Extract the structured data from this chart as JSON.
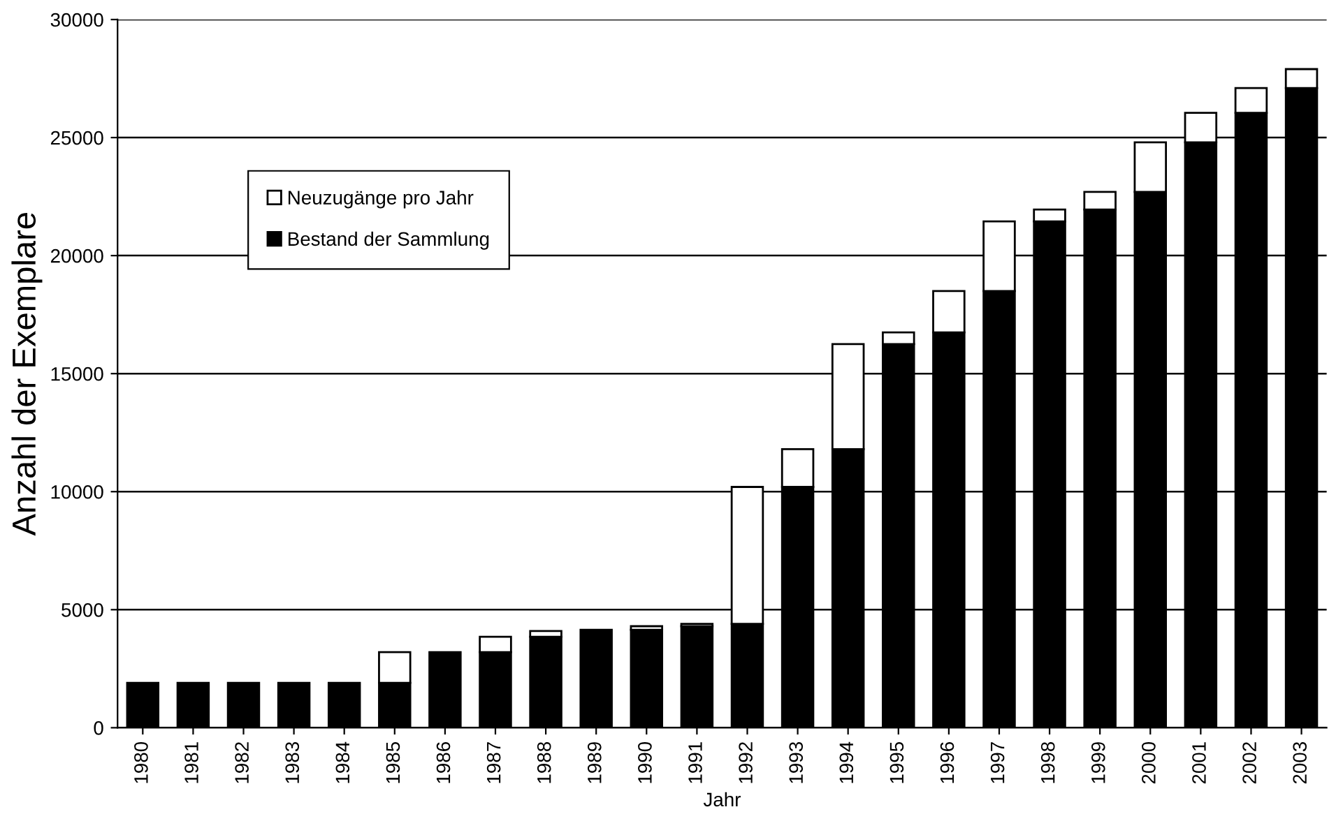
{
  "chart_data": {
    "type": "bar",
    "stacked": true,
    "xlabel": "Jahr",
    "ylabel": "Anzahl der Exemplare",
    "categories": [
      "1980",
      "1981",
      "1982",
      "1983",
      "1984",
      "1985",
      "1986",
      "1987",
      "1988",
      "1989",
      "1990",
      "1991",
      "1992",
      "1993",
      "1994",
      "1995",
      "1996",
      "1997",
      "1998",
      "1999",
      "2000",
      "2001",
      "2002",
      "2003"
    ],
    "series": [
      {
        "name": "Bestand der Sammlung",
        "color": "#000000",
        "values": [
          1900,
          1900,
          1900,
          1900,
          1900,
          1900,
          3200,
          3200,
          3850,
          4150,
          4150,
          4300,
          4400,
          10200,
          11800,
          16250,
          16750,
          18500,
          21450,
          21950,
          22700,
          24800,
          26050,
          27100
        ]
      },
      {
        "name": "Neuzugänge pro Jahr",
        "color": "#ffffff",
        "values": [
          null,
          null,
          null,
          null,
          null,
          1300,
          null,
          650,
          250,
          null,
          150,
          100,
          5800,
          1600,
          4450,
          500,
          1750,
          2950,
          500,
          750,
          2100,
          1250,
          1050,
          800
        ]
      }
    ],
    "ylim": [
      0,
      30000
    ],
    "yticks": [
      0,
      5000,
      10000,
      15000,
      20000,
      25000,
      30000
    ],
    "grid": "y",
    "legend": "top left"
  }
}
